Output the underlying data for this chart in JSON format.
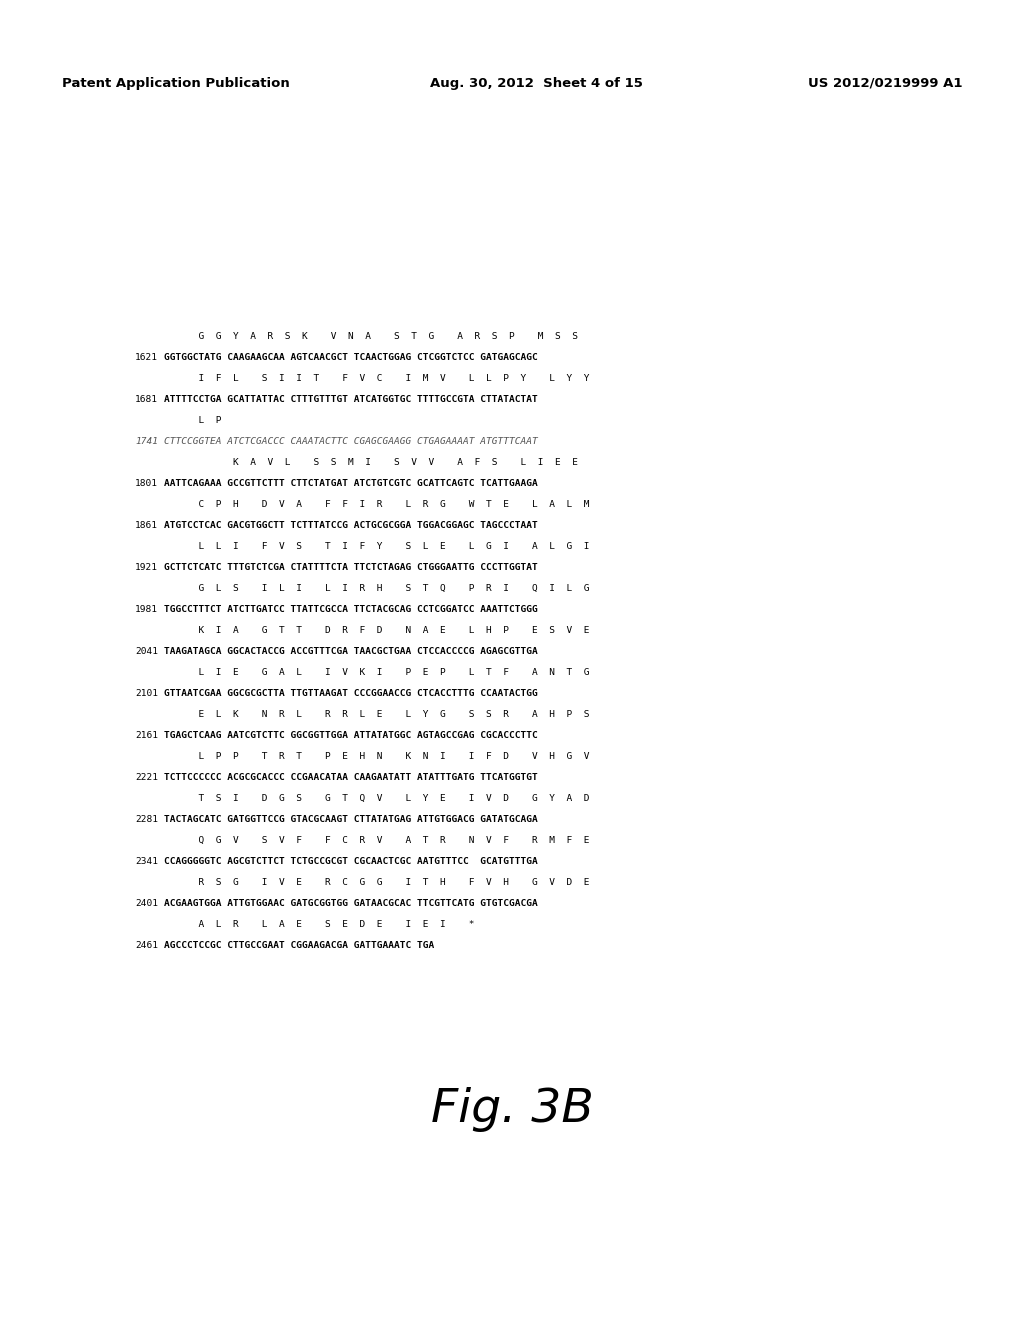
{
  "header_left": "Patent Application Publication",
  "header_center": "Aug. 30, 2012  Sheet 4 of 15",
  "header_right": "US 2012/0219999 A1",
  "figure_label": "Fig. 3B",
  "background_color": "#ffffff",
  "text_color": "#000000",
  "seq_lines": [
    [
      "aa",
      "",
      "      G  G  Y  A  R  S  K    V  N  A    S  T  G    A  R  S  P    M  S  S"
    ],
    [
      "dna",
      "1621",
      "GGTGGCTATG CAAGAAGCAA AGTCAACGCT TCAACTGGAG CTCGGTCTCC GATGAGCAGC"
    ],
    [
      "aa",
      "",
      "      I  F  L    S  I  I  T    F  V  C    I  M  V    L  L  P  Y    L  Y  Y"
    ],
    [
      "dna",
      "1681",
      "ATTTTCCTGA GCATTATTAC CTTTGTTTGT ATCATGGTGC TTTTGCCGTA CTTATACTAT"
    ],
    [
      "aa",
      "",
      "      L  P"
    ],
    [
      "dna_italic",
      "1741",
      "CTTCCGGTEA ATCTCGACCC CAAATACTTC CGAGCGAAGG CTGAGAAAAT ATGTTTCAAT"
    ],
    [
      "aa",
      "",
      "            K  A  V  L    S  S  M  I    S  V  V    A  F  S    L  I  E  E"
    ],
    [
      "dna",
      "1801",
      "AATTCAGAAA GCCGTTCTTT CTTCTATGAT ATCTGTCGTC GCATTCAGTC TCATTGAAGA"
    ],
    [
      "aa",
      "",
      "      C  P  H    D  V  A    F  F  I  R    L  R  G    W  T  E    L  A  L  M"
    ],
    [
      "dna",
      "1861",
      "ATGTCCTCAC GACGTGGCTT TCTTTATCCG ACTGCGCGGA TGGACGGAGC TAGCCCTAAT"
    ],
    [
      "aa",
      "",
      "      L  L  I    F  V  S    T  I  F  Y    S  L  E    L  G  I    A  L  G  I"
    ],
    [
      "dna",
      "1921",
      "GCTTCTCATC TTTGTCTCGA CTATTTTCTA TTCTCTAGAG CTGGGAATTG CCCTTGGTAT"
    ],
    [
      "aa",
      "",
      "      G  L  S    I  L  I    L  I  R  H    S  T  Q    P  R  I    Q  I  L  G"
    ],
    [
      "dna",
      "1981",
      "TGGCCTTTCT ATCTTGATCC TTATTCGCCA TTCTACGCAG CCTCGGATCC AAATTCTGGG"
    ],
    [
      "aa",
      "",
      "      K  I  A    G  T  T    D  R  F  D    N  A  E    L  H  P    E  S  V  E"
    ],
    [
      "dna",
      "2041",
      "TAAGATAGCA GGCACTACCG ACCGTTTCGA TAACGCTGAA CTCCACCCCG AGAGCGTTGA"
    ],
    [
      "aa",
      "",
      "      L  I  E    G  A  L    I  V  K  I    P  E  P    L  T  F    A  N  T  G"
    ],
    [
      "dna",
      "2101",
      "GTTAATCGAA GGCGCGCTTA TTGTTAAGAT CCCGGAACCG CTCACCTTTG CCAATACTGG"
    ],
    [
      "aa",
      "",
      "      E  L  K    N  R  L    R  R  L  E    L  Y  G    S  S  R    A  H  P  S"
    ],
    [
      "dna",
      "2161",
      "TGAGCTCAAG AATCGTCTTC GGCGGTTGGA ATTATATGGC AGTAGCCGAG CGCACCCTTC"
    ],
    [
      "aa",
      "",
      "      L  P  P    T  R  T    P  E  H  N    K  N  I    I  F  D    V  H  G  V"
    ],
    [
      "dna",
      "2221",
      "TCTTCCCCCC ACGCGCACCC CCGAACATAA CAAGAATATT ATATTTGATG TTCATGGTGT"
    ],
    [
      "aa",
      "",
      "      T  S  I    D  G  S    G  T  Q  V    L  Y  E    I  V  D    G  Y  A  D"
    ],
    [
      "dna",
      "2281",
      "TACTAGCATC GATGGTTCCG GTACGCAAGT CTTATATGAG ATTGTGGACG GATATGCAGA"
    ],
    [
      "aa",
      "",
      "      Q  G  V    S  V  F    F  C  R  V    A  T  R    N  V  F    R  M  F  E"
    ],
    [
      "dna",
      "2341",
      "CCAGGGGGTC AGCGTCTTCT TCTGCCGCGT CGCAACTCGC AATGTTTCC  GCATGTTTGA"
    ],
    [
      "aa",
      "",
      "      R  S  G    I  V  E    R  C  G  G    I  T  H    F  V  H    G  V  D  E"
    ],
    [
      "dna",
      "2401",
      "ACGAAGTGGA ATTGTGGAAC GATGCGGTGG GATAACGCAC TTCGTTCATG GTGTCGACGA"
    ],
    [
      "aa",
      "",
      "      A  L  R    L  A  E    S  E  D  E    I  E  I    *"
    ],
    [
      "dna",
      "2461",
      "AGCCCTCCGC CTTGCCGAAT CGGAAGACGA GATTGAAATC TGA"
    ]
  ]
}
